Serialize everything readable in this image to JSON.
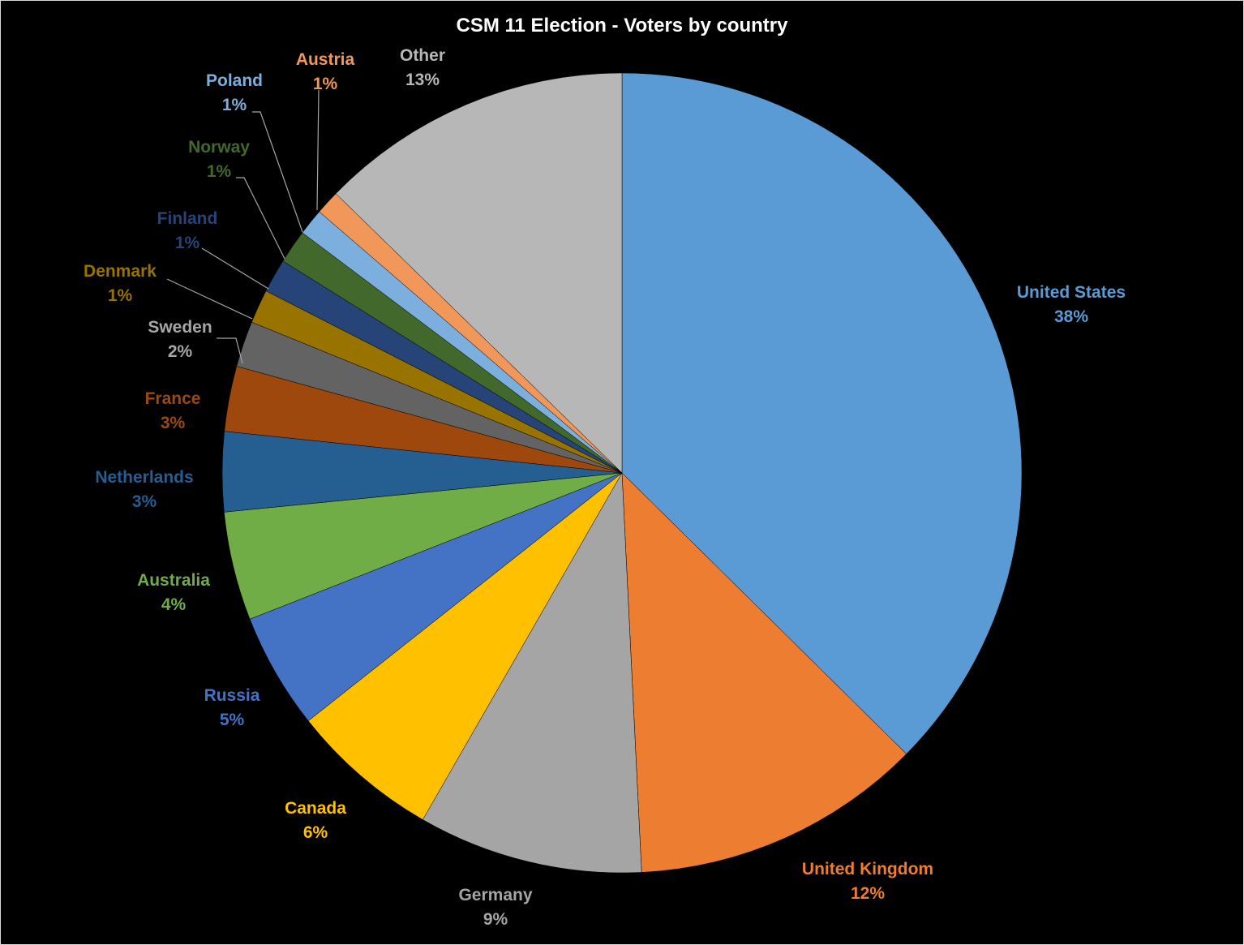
{
  "chart_data": {
    "type": "pie",
    "title": "CSM 11 Election - Voters by country",
    "start_angle_deg": 0,
    "direction": "clockwise",
    "legend": "none",
    "slices": [
      {
        "name": "United States",
        "percent_label": "38%",
        "value": 38.3,
        "color": "#5b9bd5"
      },
      {
        "name": "United Kingdom",
        "percent_label": "12%",
        "value": 12.1,
        "color": "#ed7d31"
      },
      {
        "name": "Germany",
        "percent_label": "9%",
        "value": 9.3,
        "color": "#a5a5a5"
      },
      {
        "name": "Canada",
        "percent_label": "6%",
        "value": 6.2,
        "color": "#ffc000"
      },
      {
        "name": "Russia",
        "percent_label": "5%",
        "value": 4.8,
        "color": "#4472c4"
      },
      {
        "name": "Australia",
        "percent_label": "4%",
        "value": 4.5,
        "color": "#70ad47"
      },
      {
        "name": "Netherlands",
        "percent_label": "3%",
        "value": 3.3,
        "color": "#255e91"
      },
      {
        "name": "France",
        "percent_label": "3%",
        "value": 2.7,
        "color": "#9e480e"
      },
      {
        "name": "Sweden",
        "percent_label": "2%",
        "value": 1.9,
        "color": "#636363"
      },
      {
        "name": "Denmark",
        "percent_label": "1%",
        "value": 1.4,
        "color": "#997300"
      },
      {
        "name": "Finland",
        "percent_label": "1%",
        "value": 1.4,
        "color": "#264478"
      },
      {
        "name": "Norway",
        "percent_label": "1%",
        "value": 1.4,
        "color": "#43682b"
      },
      {
        "name": "Poland",
        "percent_label": "1%",
        "value": 1.1,
        "color": "#7cafdd"
      },
      {
        "name": "Austria",
        "percent_label": "1%",
        "value": 1.0,
        "color": "#f1975a"
      },
      {
        "name": "Other",
        "percent_label": "13%",
        "value": 13.0,
        "color": "#b7b7b7"
      }
    ]
  }
}
